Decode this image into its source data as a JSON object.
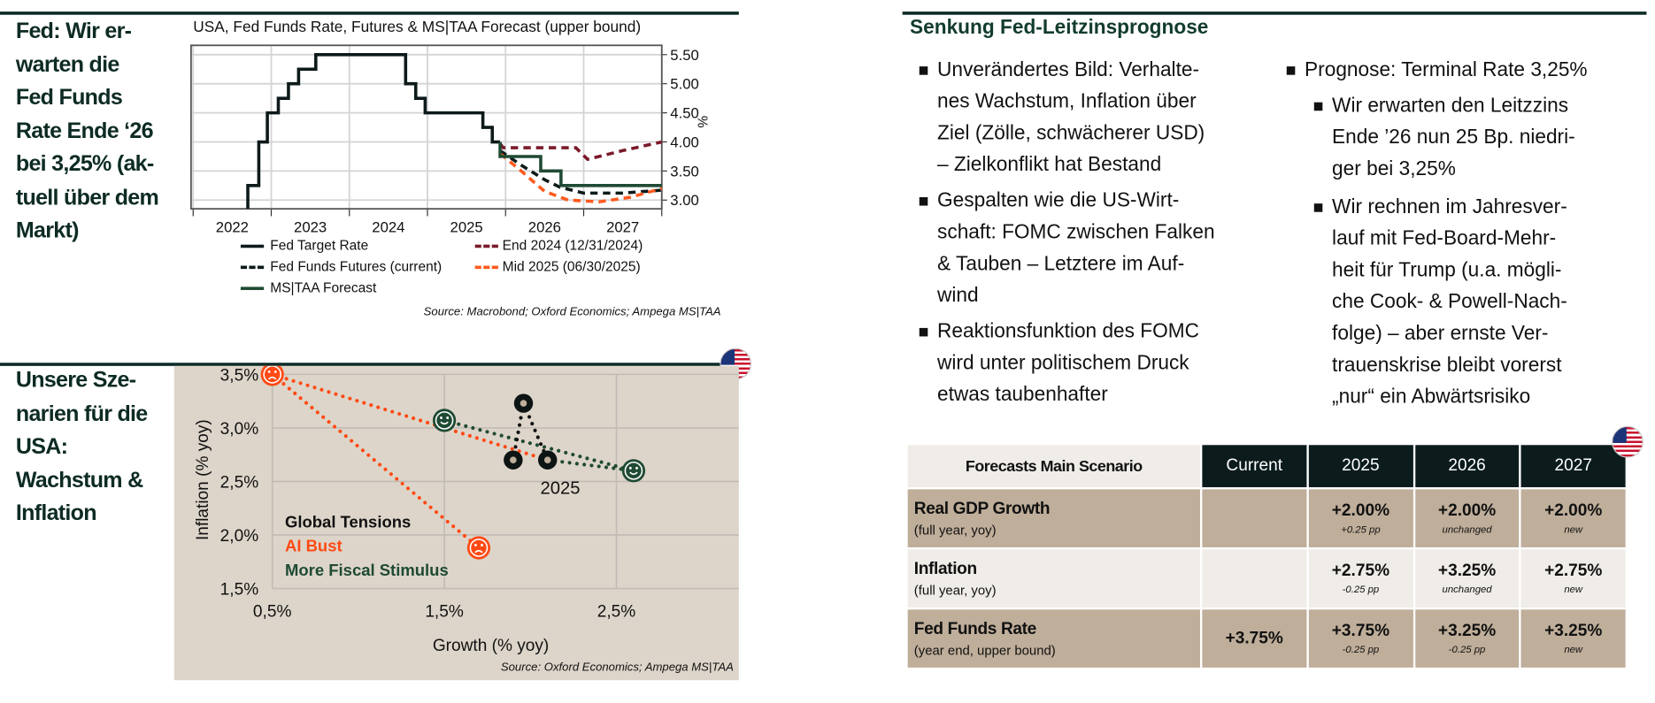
{
  "left_top": {
    "title_lines": [
      "Fed: Wir er-",
      "warten die",
      "Fed Funds",
      "Rate Ende ‘26",
      "bei 3,25% (ak-",
      "tuell über dem",
      "Markt)"
    ]
  },
  "left_bottom": {
    "title_lines": [
      "Unsere Sze-",
      "narien für die",
      "USA:",
      "Wachstum &",
      "Inflation"
    ]
  },
  "colors": {
    "dark_green": "#0d2b24",
    "fed_target": "#0d1a1a",
    "futures": "#0d1a1a",
    "end_2024": "#7a1a2a",
    "mid_2025": "#ff5a1f",
    "ms_taa": "#1f4a33",
    "ai_bust": "#ff4a14",
    "fiscal": "#1f4a33",
    "global": "#111111",
    "table_beige": "#bfae9a",
    "table_light": "#f0ece7",
    "table_header_dark": "#0c1c1c"
  },
  "chart_data": [
    {
      "type": "line",
      "title": "USA, Fed Funds Rate, Futures & MS|TAA Forecast (upper bound)",
      "ylabel": "%",
      "ylim": [
        2.85,
        5.66
      ],
      "xlim": [
        2022,
        2028
      ],
      "x_tick_labels": [
        "2022",
        "2023",
        "2024",
        "2025",
        "2026",
        "2027"
      ],
      "y_ticks": [
        3.0,
        3.5,
        4.0,
        4.5,
        5.0,
        5.5
      ],
      "y_tick_labels": [
        "3.00",
        "3.50",
        "4.00",
        "4.50",
        "5.00",
        "5.50"
      ],
      "y_axis_side": "right",
      "grid": true,
      "legend_placement": "bottom",
      "source": "Source: Macrobond; Oxford Economics; Ampega MS|TAA",
      "series": [
        {
          "name": "Fed Target Rate",
          "style": "solid-step",
          "color_key": "fed_target",
          "points": [
            [
              2022.7,
              2.85
            ],
            [
              2022.7,
              3.25
            ],
            [
              2022.84,
              3.25
            ],
            [
              2022.84,
              4.0
            ],
            [
              2022.95,
              4.0
            ],
            [
              2022.95,
              4.5
            ],
            [
              2023.09,
              4.5
            ],
            [
              2023.09,
              4.75
            ],
            [
              2023.22,
              4.75
            ],
            [
              2023.22,
              5.0
            ],
            [
              2023.35,
              5.0
            ],
            [
              2023.35,
              5.25
            ],
            [
              2023.57,
              5.25
            ],
            [
              2023.57,
              5.5
            ],
            [
              2024.72,
              5.5
            ],
            [
              2024.72,
              5.0
            ],
            [
              2024.85,
              5.0
            ],
            [
              2024.85,
              4.75
            ],
            [
              2024.97,
              4.75
            ],
            [
              2024.97,
              4.5
            ],
            [
              2025.71,
              4.5
            ],
            [
              2025.71,
              4.25
            ],
            [
              2025.83,
              4.25
            ],
            [
              2025.83,
              4.0
            ],
            [
              2025.93,
              4.0
            ]
          ]
        },
        {
          "name": "End 2024 (12/31/2024)",
          "style": "dashed",
          "color_key": "end_2024",
          "points": [
            [
              2025.93,
              3.97
            ],
            [
              2025.97,
              3.9
            ],
            [
              2026.9,
              3.9
            ],
            [
              2027.05,
              3.7
            ],
            [
              2027.5,
              3.85
            ],
            [
              2028.0,
              4.0
            ]
          ]
        },
        {
          "name": "Fed Funds Futures (current)",
          "style": "dashed",
          "color_key": "futures",
          "points": [
            [
              2025.93,
              3.85
            ],
            [
              2026.2,
              3.6
            ],
            [
              2026.5,
              3.35
            ],
            [
              2026.7,
              3.22
            ],
            [
              2027.0,
              3.12
            ],
            [
              2027.5,
              3.12
            ],
            [
              2028.0,
              3.17
            ]
          ]
        },
        {
          "name": "Mid 2025 (06/30/2025)",
          "style": "dashed",
          "color_key": "mid_2025",
          "points": [
            [
              2025.93,
              3.8
            ],
            [
              2026.2,
              3.5
            ],
            [
              2026.5,
              3.15
            ],
            [
              2026.8,
              3.0
            ],
            [
              2027.2,
              2.97
            ],
            [
              2027.6,
              3.05
            ],
            [
              2028.0,
              3.2
            ]
          ]
        },
        {
          "name": "MS|TAA Forecast",
          "style": "solid-step",
          "color_key": "ms_taa",
          "points": [
            [
              2025.93,
              4.0
            ],
            [
              2025.93,
              3.75
            ],
            [
              2026.45,
              3.75
            ],
            [
              2026.45,
              3.5
            ],
            [
              2026.71,
              3.5
            ],
            [
              2026.71,
              3.25
            ],
            [
              2028.0,
              3.25
            ]
          ]
        }
      ]
    },
    {
      "type": "scatter",
      "xlabel": "Growth (% yoy)",
      "ylabel": "Inflation (% yoy)",
      "xlim": [
        0.5,
        3.1
      ],
      "ylim": [
        1.5,
        3.6
      ],
      "x_ticks": [
        0.5,
        1.5,
        2.5
      ],
      "x_tick_labels": [
        "0,5%",
        "1,5%",
        "2,5%"
      ],
      "y_ticks": [
        1.5,
        2.0,
        2.5,
        3.0,
        3.5
      ],
      "y_tick_labels": [
        "1,5%",
        "2,0%",
        "2,5%",
        "3,0%",
        "3,5%"
      ],
      "grid": true,
      "legend_placement": "bottom-left",
      "legend": [
        {
          "name": "Global Tensions",
          "color_key": "global"
        },
        {
          "name": "AI Bust",
          "color_key": "ai_bust"
        },
        {
          "name": "More Fiscal Stimulus",
          "color_key": "fiscal"
        }
      ],
      "annotation": "2025",
      "source": "Source: Oxford Economics; Ampega MS|TAA",
      "points": [
        {
          "scenario": "AI Bust",
          "marker": "sad-face",
          "x": 0.5,
          "y": 3.5
        },
        {
          "scenario": "AI Bust",
          "marker": "sad-face",
          "x": 1.7,
          "y": 1.88
        },
        {
          "scenario": "More Fiscal Stimulus",
          "marker": "smile-face",
          "x": 1.5,
          "y": 3.07
        },
        {
          "scenario": "More Fiscal Stimulus",
          "marker": "smile-face",
          "x": 2.6,
          "y": 2.6
        },
        {
          "scenario": "Global Tensions",
          "marker": "donut",
          "x": 1.96,
          "y": 3.23
        },
        {
          "scenario": "Global Tensions",
          "marker": "donut",
          "x": 1.9,
          "y": 2.7
        },
        {
          "scenario": "Global Tensions",
          "marker": "donut",
          "x": 2.1,
          "y": 2.7
        }
      ],
      "connectors": [
        {
          "color_key": "ai_bust",
          "from": [
            0.5,
            3.5
          ],
          "to": [
            1.7,
            1.88
          ]
        },
        {
          "color_key": "ai_bust",
          "from": [
            0.5,
            3.5
          ],
          "to": [
            2.1,
            2.7
          ]
        },
        {
          "color_key": "fiscal",
          "from": [
            1.5,
            3.07
          ],
          "to": [
            2.6,
            2.6
          ]
        },
        {
          "color_key": "fiscal",
          "from": [
            2.1,
            2.7
          ],
          "to": [
            2.6,
            2.6
          ]
        },
        {
          "color_key": "global",
          "from": [
            1.96,
            3.23
          ],
          "to": [
            1.9,
            2.7
          ]
        },
        {
          "color_key": "global",
          "from": [
            1.96,
            3.23
          ],
          "to": [
            2.1,
            2.7
          ]
        }
      ]
    }
  ],
  "right": {
    "heading": "Senkung Fed-Leitzinsprognose",
    "col1": [
      "Unverändertes Bild: Verhalte-\nnes Wachstum, Inflation über\nZiel (Zölle, schwächerer USD)\n– Zielkonflikt hat Bestand",
      "Gespalten wie die US-Wirt-\nschaft: FOMC zwischen Falken\n& Tauben – Letztere im Auf-\nwind",
      "Reaktionsfunktion des FOMC\nwird unter politischem Druck\netwas taubenhafter"
    ],
    "col2_main": "Prognose: Terminal Rate 3,25%",
    "col2_sub": [
      "Wir erwarten den Leitzzins\nEnde ’26 nun 25 Bp. niedri-\nger bei 3,25%",
      "Wir rechnen im Jahresver-\nlauf mit Fed-Board-Mehr-\nheit für Trump (u.a. mögli-\nche Cook- & Powell-Nach-\nfolge) – aber ernste Ver-\ntrauenskrise bleibt vorerst\n„nur“ ein Abwärtsrisiko"
    ]
  },
  "table": {
    "header": [
      "Forecasts Main Scenario",
      "Current",
      "2025",
      "2026",
      "2027"
    ],
    "rows": [
      {
        "label": "Real GDP Growth",
        "sub": "(full year, yoy)",
        "current": "",
        "values": [
          {
            "v": "+2.00%",
            "note": "+0.25 pp"
          },
          {
            "v": "+2.00%",
            "note": "unchanged"
          },
          {
            "v": "+2.00%",
            "note": "new"
          }
        ]
      },
      {
        "label": "Inflation",
        "sub": "(full year, yoy)",
        "current": "",
        "values": [
          {
            "v": "+2.75%",
            "note": "-0.25 pp"
          },
          {
            "v": "+3.25%",
            "note": "unchanged"
          },
          {
            "v": "+2.75%",
            "note": "new"
          }
        ]
      },
      {
        "label": "Fed Funds Rate",
        "sub": "(year end, upper bound)",
        "current": "+3.75%",
        "values": [
          {
            "v": "+3.75%",
            "note": "-0.25 pp"
          },
          {
            "v": "+3.25%",
            "note": "-0.25 pp"
          },
          {
            "v": "+3.25%",
            "note": "new"
          }
        ]
      }
    ]
  }
}
